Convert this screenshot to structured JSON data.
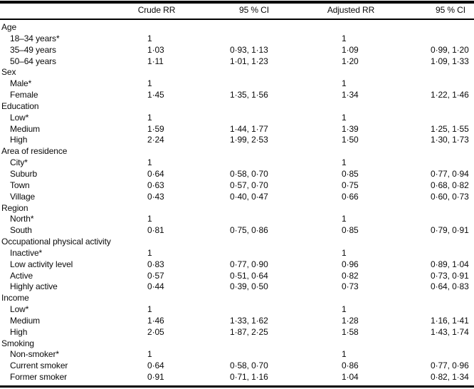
{
  "table": {
    "header": {
      "crude_rr": "Crude RR",
      "ci1": "95 % CI",
      "adj_rr": "Adjusted RR",
      "ci2": "95 % CI"
    },
    "rows": [
      {
        "label": "Age",
        "indent": false,
        "crude_rr": "",
        "crude_ci": "",
        "adj_rr": "",
        "adj_ci": ""
      },
      {
        "label": "18–34 years*",
        "indent": true,
        "crude_rr": "1",
        "crude_ci": "",
        "adj_rr": "1",
        "adj_ci": ""
      },
      {
        "label": "35–49 years",
        "indent": true,
        "crude_rr": "1·03",
        "crude_ci": "0·93, 1·13",
        "adj_rr": "1·09",
        "adj_ci": "0·99, 1·20"
      },
      {
        "label": "50–64 years",
        "indent": true,
        "crude_rr": "1·11",
        "crude_ci": "1·01, 1·23",
        "adj_rr": "1·20",
        "adj_ci": "1·09, 1·33"
      },
      {
        "label": "Sex",
        "indent": false,
        "crude_rr": "",
        "crude_ci": "",
        "adj_rr": "",
        "adj_ci": ""
      },
      {
        "label": "Male*",
        "indent": true,
        "crude_rr": "1",
        "crude_ci": "",
        "adj_rr": "1",
        "adj_ci": ""
      },
      {
        "label": "Female",
        "indent": true,
        "crude_rr": "1·45",
        "crude_ci": "1·35, 1·56",
        "adj_rr": "1·34",
        "adj_ci": "1·22, 1·46"
      },
      {
        "label": "Education",
        "indent": false,
        "crude_rr": "",
        "crude_ci": "",
        "adj_rr": "",
        "adj_ci": ""
      },
      {
        "label": "Low*",
        "indent": true,
        "crude_rr": "1",
        "crude_ci": "",
        "adj_rr": "1",
        "adj_ci": ""
      },
      {
        "label": "Medium",
        "indent": true,
        "crude_rr": "1·59",
        "crude_ci": "1·44, 1·77",
        "adj_rr": "1·39",
        "adj_ci": "1·25, 1·55"
      },
      {
        "label": "High",
        "indent": true,
        "crude_rr": "2·24",
        "crude_ci": "1·99, 2·53",
        "adj_rr": "1·50",
        "adj_ci": "1·30, 1·73"
      },
      {
        "label": "Area of residence",
        "indent": false,
        "crude_rr": "",
        "crude_ci": "",
        "adj_rr": "",
        "adj_ci": ""
      },
      {
        "label": "City*",
        "indent": true,
        "crude_rr": "1",
        "crude_ci": "",
        "adj_rr": "1",
        "adj_ci": ""
      },
      {
        "label": "Suburb",
        "indent": true,
        "crude_rr": "0·64",
        "crude_ci": "0·58, 0·70",
        "adj_rr": "0·85",
        "adj_ci": "0·77, 0·94"
      },
      {
        "label": "Town",
        "indent": true,
        "crude_rr": "0·63",
        "crude_ci": "0·57, 0·70",
        "adj_rr": "0·75",
        "adj_ci": "0·68, 0·82"
      },
      {
        "label": "Village",
        "indent": true,
        "crude_rr": "0·43",
        "crude_ci": "0·40, 0·47",
        "adj_rr": "0·66",
        "adj_ci": "0·60, 0·73"
      },
      {
        "label": "Region",
        "indent": false,
        "crude_rr": "",
        "crude_ci": "",
        "adj_rr": "",
        "adj_ci": ""
      },
      {
        "label": "North*",
        "indent": true,
        "crude_rr": "1",
        "crude_ci": "",
        "adj_rr": "1",
        "adj_ci": ""
      },
      {
        "label": "South",
        "indent": true,
        "crude_rr": "0·81",
        "crude_ci": "0·75, 0·86",
        "adj_rr": "0·85",
        "adj_ci": "0·79, 0·91"
      },
      {
        "label": "Occupational physical activity",
        "indent": false,
        "crude_rr": "",
        "crude_ci": "",
        "adj_rr": "",
        "adj_ci": ""
      },
      {
        "label": "Inactive*",
        "indent": true,
        "crude_rr": "1",
        "crude_ci": "",
        "adj_rr": "1",
        "adj_ci": ""
      },
      {
        "label": "Low activity level",
        "indent": true,
        "crude_rr": "0·83",
        "crude_ci": "0·77, 0·90",
        "adj_rr": "0·96",
        "adj_ci": "0·89, 1·04"
      },
      {
        "label": "Active",
        "indent": true,
        "crude_rr": "0·57",
        "crude_ci": "0·51, 0·64",
        "adj_rr": "0·82",
        "adj_ci": "0·73, 0·91"
      },
      {
        "label": "Highly active",
        "indent": true,
        "crude_rr": "0·44",
        "crude_ci": "0·39, 0·50",
        "adj_rr": "0·73",
        "adj_ci": "0·64, 0·83"
      },
      {
        "label": "Income",
        "indent": false,
        "crude_rr": "",
        "crude_ci": "",
        "adj_rr": "",
        "adj_ci": ""
      },
      {
        "label": "Low*",
        "indent": true,
        "crude_rr": "1",
        "crude_ci": "",
        "adj_rr": "1",
        "adj_ci": ""
      },
      {
        "label": "Medium",
        "indent": true,
        "crude_rr": "1·46",
        "crude_ci": "1·33, 1·62",
        "adj_rr": "1·28",
        "adj_ci": "1·16, 1·41"
      },
      {
        "label": "High",
        "indent": true,
        "crude_rr": "2·05",
        "crude_ci": "1·87, 2·25",
        "adj_rr": "1·58",
        "adj_ci": "1·43, 1·74"
      },
      {
        "label": "Smoking",
        "indent": false,
        "crude_rr": "",
        "crude_ci": "",
        "adj_rr": "",
        "adj_ci": ""
      },
      {
        "label": "Non-smoker*",
        "indent": true,
        "crude_rr": "1",
        "crude_ci": "",
        "adj_rr": "1",
        "adj_ci": ""
      },
      {
        "label": "Current smoker",
        "indent": true,
        "crude_rr": "0·64",
        "crude_ci": "0·58, 0·70",
        "adj_rr": "0·86",
        "adj_ci": "0·77, 0·96"
      },
      {
        "label": "Former smoker",
        "indent": true,
        "crude_rr": "0·91",
        "crude_ci": "0·71, 1·16",
        "adj_rr": "1·04",
        "adj_ci": "0·82, 1·34"
      }
    ]
  }
}
